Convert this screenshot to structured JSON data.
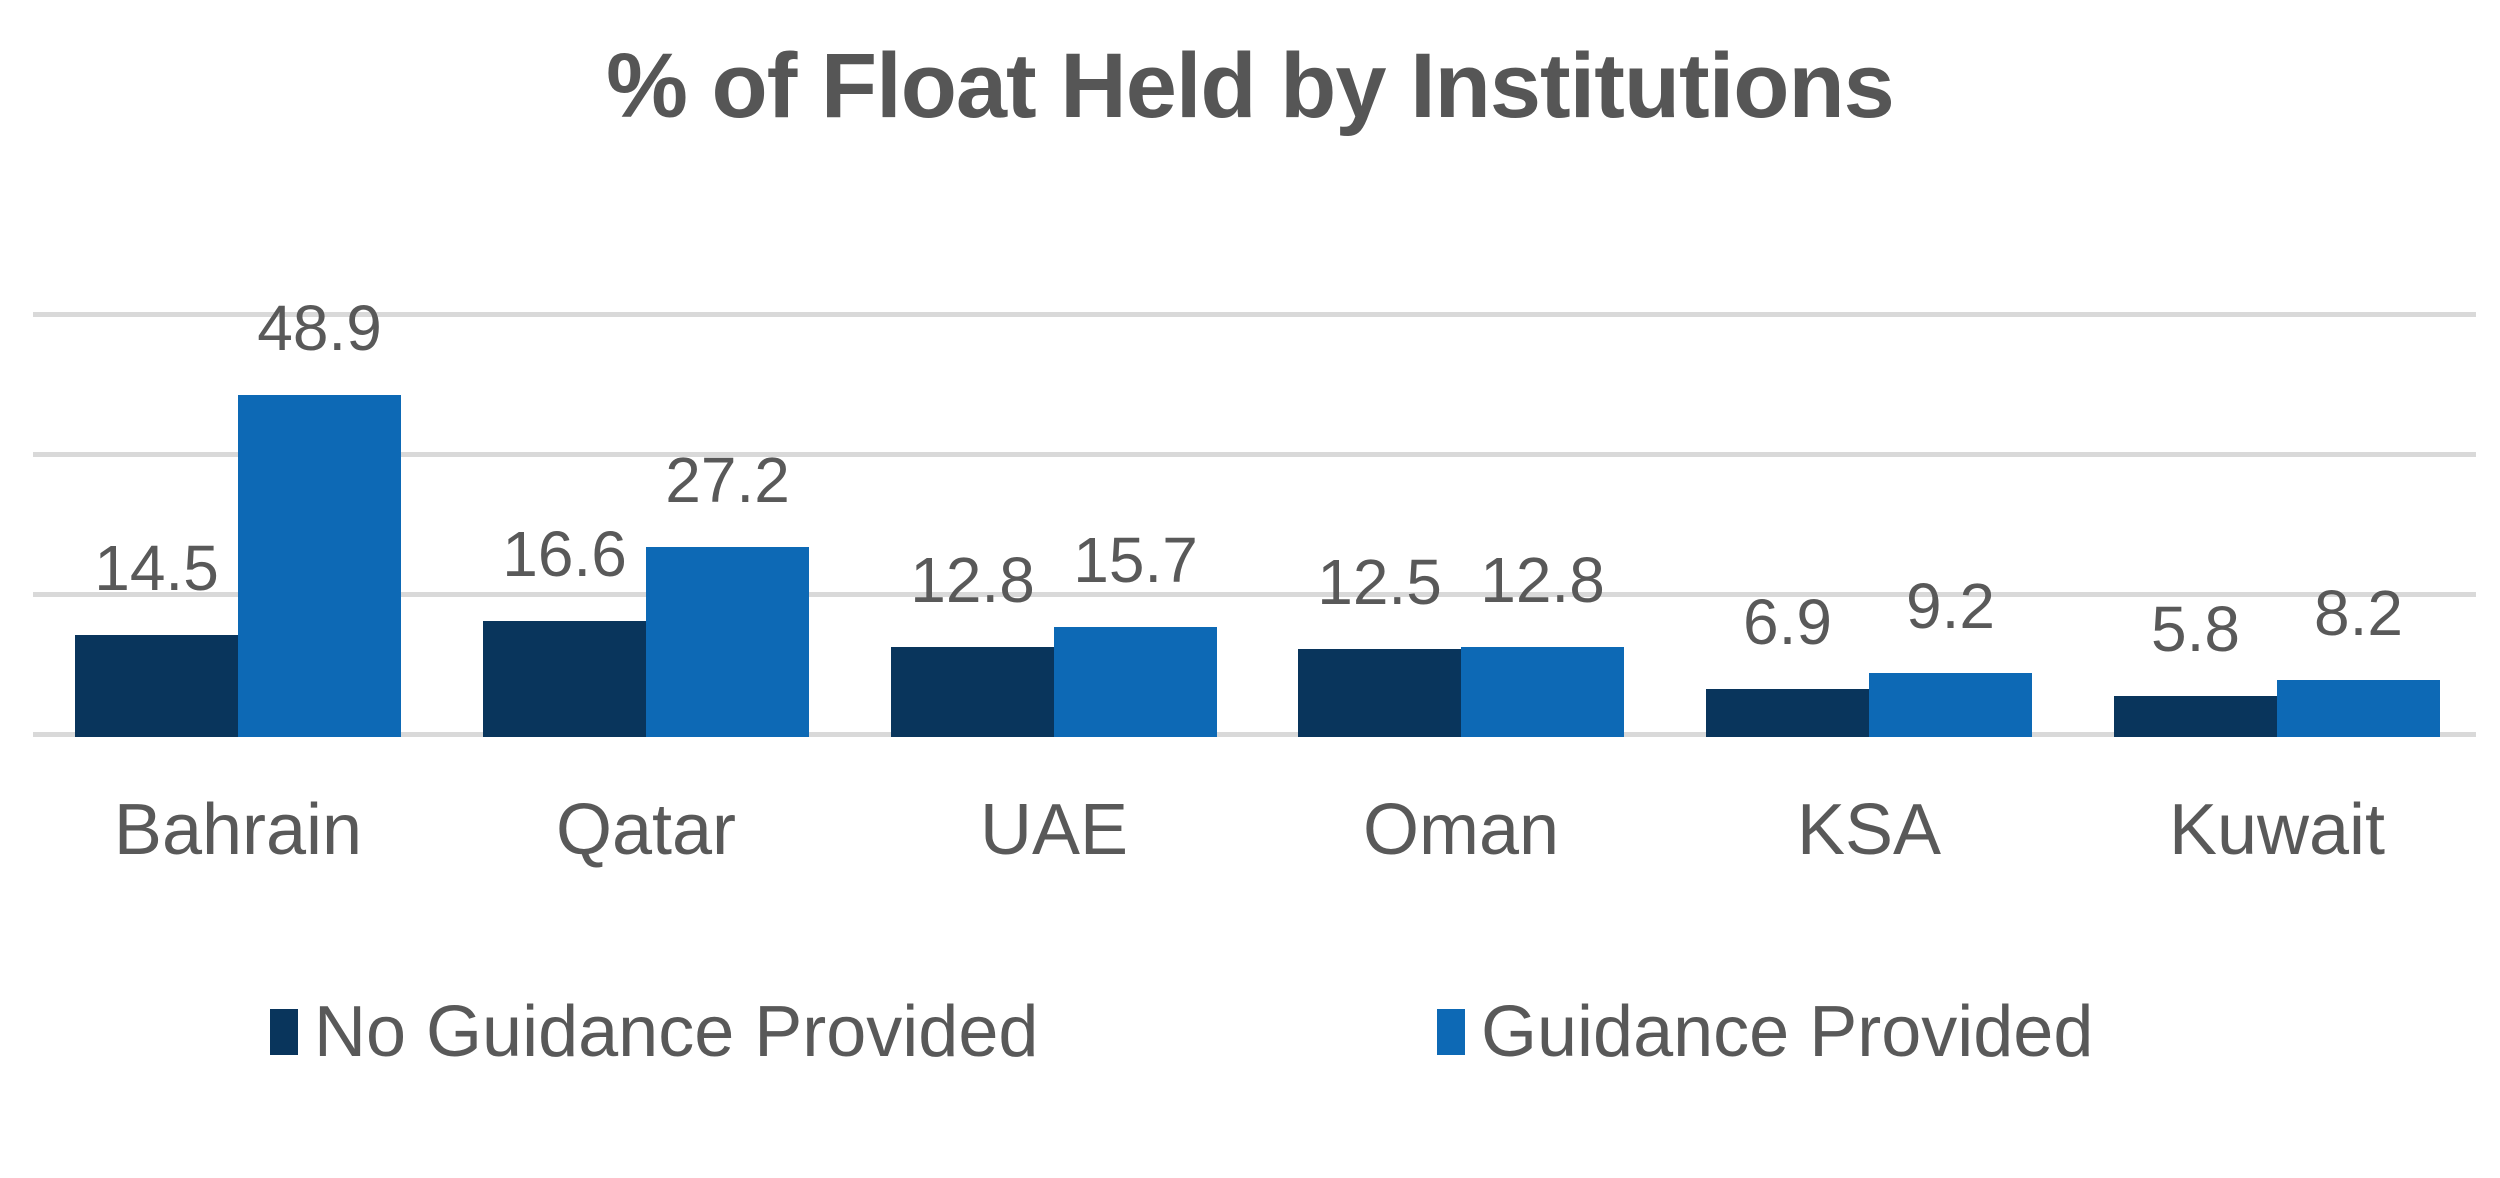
{
  "title": "% of Float Held by Institutions",
  "legend": {
    "items": [
      {
        "label": "No Guidance Provided",
        "color": "#09355C"
      },
      {
        "label": "Guidance Provided",
        "color": "#0D69B5"
      }
    ]
  },
  "colors": {
    "series_dark": "#09355C",
    "series_light": "#0D69B5",
    "gridline": "#D9D9D9",
    "label_text": "#595959",
    "title_text": "#565656",
    "background": "#FFFFFF"
  },
  "chart_data": {
    "type": "bar",
    "title": "% of Float Held by Institutions",
    "categories": [
      "Bahrain",
      "Qatar",
      "UAE",
      "Oman",
      "KSA",
      "Kuwait"
    ],
    "series": [
      {
        "name": "No Guidance Provided",
        "color": "#09355C",
        "values": [
          14.5,
          16.6,
          12.8,
          12.5,
          6.9,
          5.8
        ]
      },
      {
        "name": "Guidance Provided",
        "color": "#0D69B5",
        "values": [
          48.9,
          27.2,
          15.7,
          12.8,
          9.2,
          8.2
        ]
      }
    ],
    "value_labels_shown": true,
    "axis_tick_labels_shown": false,
    "xlabel": "",
    "ylabel": "",
    "ylim": [
      0,
      60
    ],
    "gridline_values": [
      0,
      20,
      40,
      60
    ],
    "grid": "horizontal",
    "legend_position": "bottom"
  }
}
